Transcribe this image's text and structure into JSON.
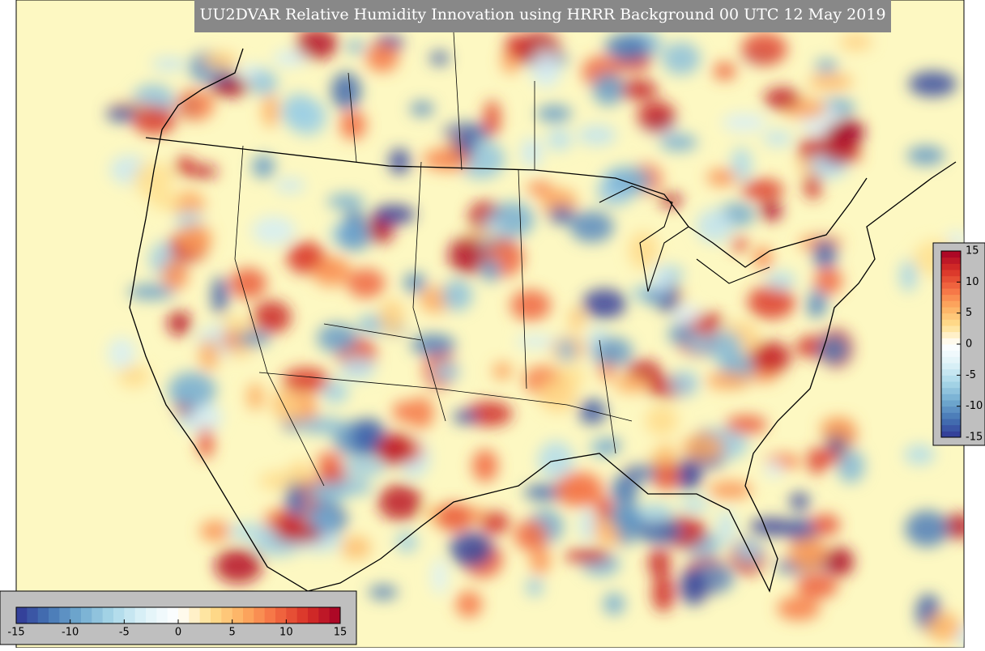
{
  "title": "UU2DVAR Relative Humidity Innovation using HRRR Background 00 UTC 12 May 2019",
  "colorbar": {
    "range": [
      -15,
      15
    ],
    "ticks": [
      -15,
      -10,
      -5,
      0,
      5,
      10,
      15
    ],
    "colors": [
      "#313695",
      "#4575b4",
      "#74add1",
      "#abd9e9",
      "#e0f3f8",
      "#ffffff",
      "#fee090",
      "#fdae61",
      "#f46d43",
      "#d73027",
      "#a50026"
    ]
  }
}
